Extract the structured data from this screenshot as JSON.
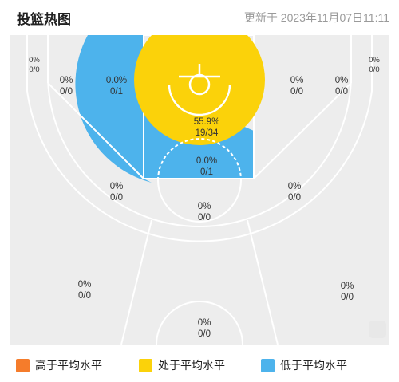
{
  "header": {
    "title": "投篮热图",
    "updated": "更新于 2023年11月07日11:11"
  },
  "colors": {
    "high": "#f57c2b",
    "average": "#fbd20a",
    "low": "#4db3ec",
    "neutral": "#ededed",
    "lines": "#ffffff"
  },
  "zones": [
    {
      "id": "corner-left",
      "pct": "0%",
      "ratio": "0/0",
      "level": "none"
    },
    {
      "id": "wing-left",
      "pct": "0%",
      "ratio": "0/0",
      "level": "none"
    },
    {
      "id": "mid-left-base",
      "pct": "0.0%",
      "ratio": "0/1",
      "level": "low"
    },
    {
      "id": "restricted",
      "pct": "55.9%",
      "ratio": "19/34",
      "level": "average"
    },
    {
      "id": "mid-right-base",
      "pct": "0%",
      "ratio": "0/0",
      "level": "none"
    },
    {
      "id": "wing-right",
      "pct": "0%",
      "ratio": "0/0",
      "level": "none"
    },
    {
      "id": "corner-right",
      "pct": "0%",
      "ratio": "0/0",
      "level": "none"
    },
    {
      "id": "paint",
      "pct": "0.0%",
      "ratio": "0/1",
      "level": "low"
    },
    {
      "id": "mid-left-elbow",
      "pct": "0%",
      "ratio": "0/0",
      "level": "none"
    },
    {
      "id": "mid-right-elbow",
      "pct": "0%",
      "ratio": "0/0",
      "level": "none"
    },
    {
      "id": "top-key",
      "pct": "0%",
      "ratio": "0/0",
      "level": "none"
    },
    {
      "id": "three-left",
      "pct": "0%",
      "ratio": "0/0",
      "level": "none"
    },
    {
      "id": "three-right",
      "pct": "0%",
      "ratio": "0/0",
      "level": "none"
    },
    {
      "id": "three-top",
      "pct": "0%",
      "ratio": "0/0",
      "level": "none"
    }
  ],
  "legend": [
    {
      "label": "高于平均水平",
      "color": "#f57c2b"
    },
    {
      "label": "处于平均水平",
      "color": "#fbd20a"
    },
    {
      "label": "低于平均水平",
      "color": "#4db3ec"
    }
  ]
}
